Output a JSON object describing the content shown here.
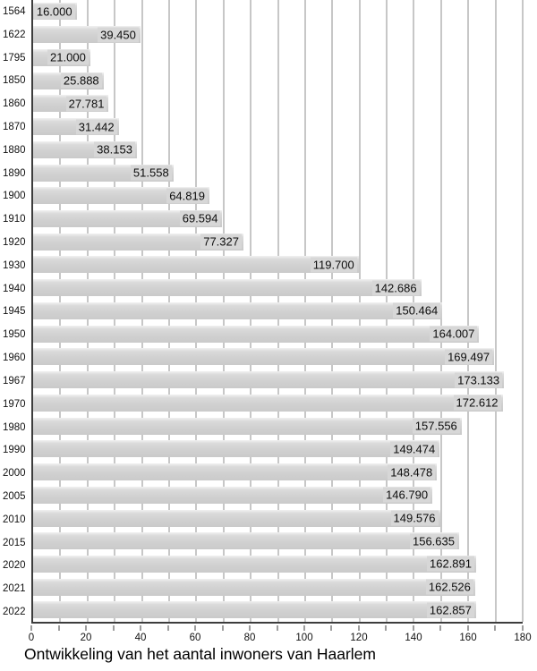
{
  "chart_data": {
    "type": "bar",
    "orientation": "horizontal",
    "title": "Ontwikkeling van het aantal inwoners van Haarlem",
    "xlabel": "",
    "ylabel": "",
    "categories": [
      "1564",
      "1622",
      "1795",
      "1850",
      "1860",
      "1870",
      "1880",
      "1890",
      "1900",
      "1910",
      "1920",
      "1930",
      "1940",
      "1945",
      "1950",
      "1960",
      "1967",
      "1970",
      "1980",
      "1990",
      "2000",
      "2005",
      "2010",
      "2015",
      "2020",
      "2021",
      "2022"
    ],
    "values": [
      16000,
      39450,
      21000,
      25888,
      27781,
      31442,
      38153,
      51558,
      64819,
      69594,
      77327,
      119700,
      142686,
      150464,
      164007,
      169497,
      173133,
      172612,
      157556,
      149474,
      148478,
      146790,
      149576,
      156635,
      162891,
      162526,
      162857
    ],
    "value_labels": [
      "16.000",
      "39.450",
      "21.000",
      "25.888",
      "27.781",
      "31.442",
      "38.153",
      "51.558",
      "64.819",
      "69.594",
      "77.327",
      "119.700",
      "142.686",
      "150.464",
      "164.007",
      "169.497",
      "173.133",
      "172.612",
      "157.556",
      "149.474",
      "148.478",
      "146.790",
      "149.576",
      "156.635",
      "162.891",
      "162.526",
      "162.857"
    ],
    "axis": {
      "unit": "thousands",
      "xlim": [
        0,
        180
      ],
      "grid_step": 10,
      "tick_step": 10,
      "tick_label_step": 20,
      "tick_labels": [
        "0",
        "20",
        "40",
        "60",
        "80",
        "100",
        "120",
        "140",
        "160",
        "180"
      ]
    },
    "grid": true,
    "legend": "none",
    "colors": {
      "bar": "#d1d1d1",
      "bar_label_bg": "#d7d7d7",
      "gridline": "#8f8f8f",
      "axis": "#3d3d3d",
      "text": "#111111",
      "background": "#ffffff"
    }
  }
}
